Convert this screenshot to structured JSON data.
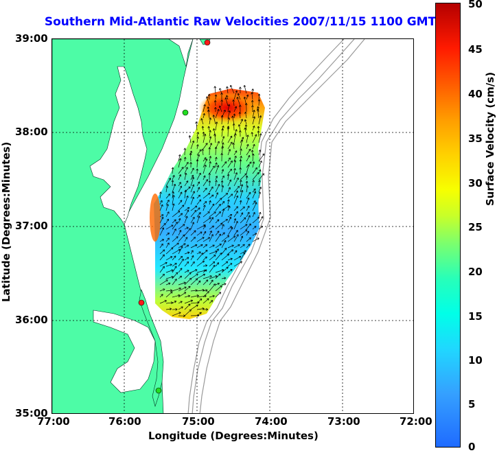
{
  "title": "Southern Mid-Atlantic Raw Velocities 2007/11/15 1100 GMT",
  "xlabel": "Longitude (Degrees:Minutes)",
  "ylabel": "Latitude (Degrees:Minutes)",
  "x_ticks": [
    "77:00",
    "76:00",
    "75:00",
    "74:00",
    "73:00",
    "72:00"
  ],
  "y_ticks": [
    "39:00",
    "38:00",
    "37:00",
    "36:00",
    "35:00"
  ],
  "colorbar": {
    "label": "Surface Velocity (cm/s)",
    "ticks": [
      "50",
      "45",
      "40",
      "35",
      "30",
      "25",
      "20",
      "15",
      "10",
      "5",
      "0"
    ]
  },
  "colors": {
    "land": "#4dfca6",
    "title": "#0000ff",
    "bathymetry": "#999999",
    "arrows": "#000000",
    "station_red": "#ff1a1a",
    "station_green": "#22dd22"
  }
}
